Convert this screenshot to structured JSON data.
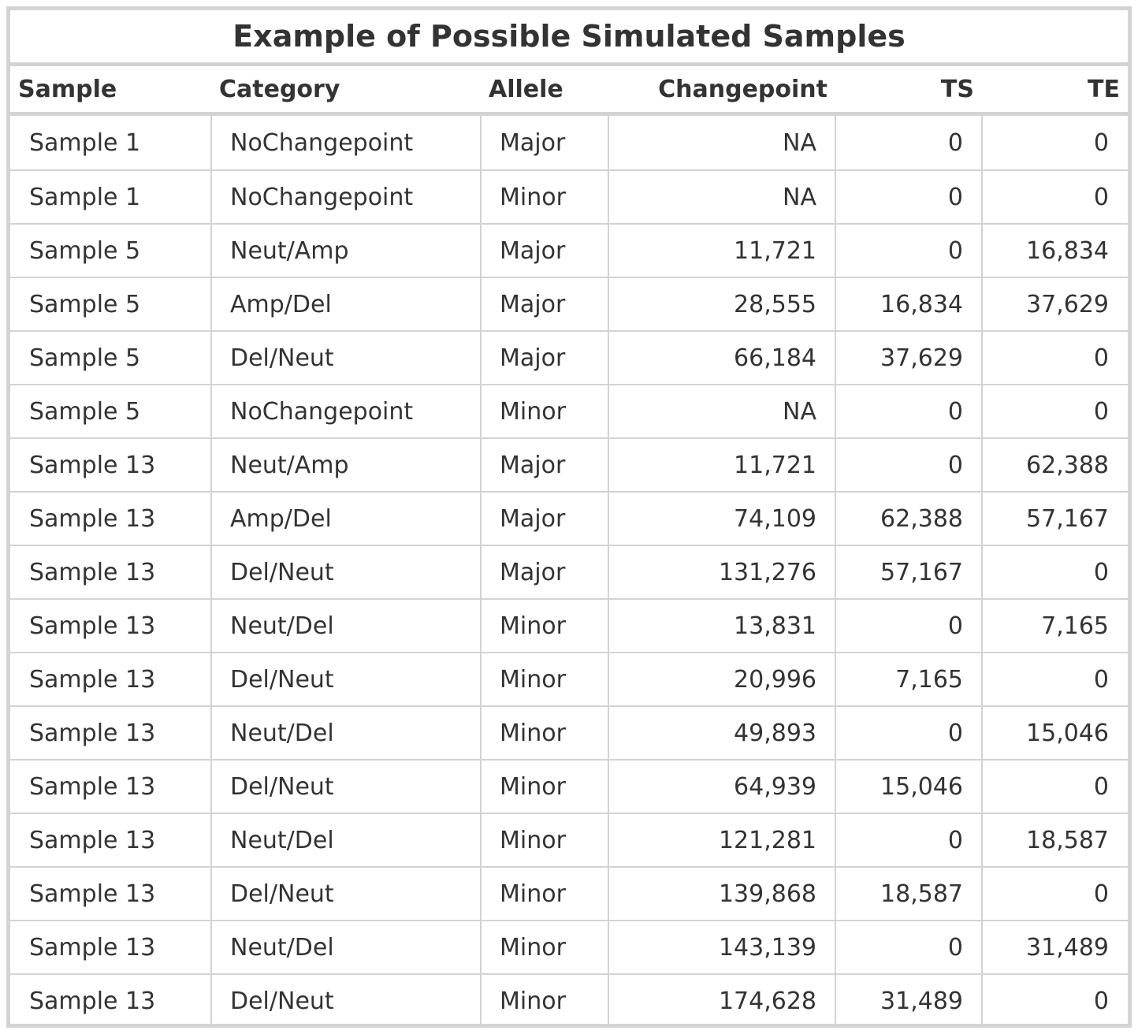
{
  "table": {
    "title": "Example of Possible Simulated Samples",
    "columns": [
      "Sample",
      "Category",
      "Allele",
      "Changepoint",
      "TS",
      "TE"
    ],
    "rows": [
      [
        "Sample 1",
        "NoChangepoint",
        "Major",
        "NA",
        "0",
        "0"
      ],
      [
        "Sample 1",
        "NoChangepoint",
        "Minor",
        "NA",
        "0",
        "0"
      ],
      [
        "Sample 5",
        "Neut/Amp",
        "Major",
        "11,721",
        "0",
        "16,834"
      ],
      [
        "Sample 5",
        "Amp/Del",
        "Major",
        "28,555",
        "16,834",
        "37,629"
      ],
      [
        "Sample 5",
        "Del/Neut",
        "Major",
        "66,184",
        "37,629",
        "0"
      ],
      [
        "Sample 5",
        "NoChangepoint",
        "Minor",
        "NA",
        "0",
        "0"
      ],
      [
        "Sample 13",
        "Neut/Amp",
        "Major",
        "11,721",
        "0",
        "62,388"
      ],
      [
        "Sample 13",
        "Amp/Del",
        "Major",
        "74,109",
        "62,388",
        "57,167"
      ],
      [
        "Sample 13",
        "Del/Neut",
        "Major",
        "131,276",
        "57,167",
        "0"
      ],
      [
        "Sample 13",
        "Neut/Del",
        "Minor",
        "13,831",
        "0",
        "7,165"
      ],
      [
        "Sample 13",
        "Del/Neut",
        "Minor",
        "20,996",
        "7,165",
        "0"
      ],
      [
        "Sample 13",
        "Neut/Del",
        "Minor",
        "49,893",
        "0",
        "15,046"
      ],
      [
        "Sample 13",
        "Del/Neut",
        "Minor",
        "64,939",
        "15,046",
        "0"
      ],
      [
        "Sample 13",
        "Neut/Del",
        "Minor",
        "121,281",
        "0",
        "18,587"
      ],
      [
        "Sample 13",
        "Del/Neut",
        "Minor",
        "139,868",
        "18,587",
        "0"
      ],
      [
        "Sample 13",
        "Neut/Del",
        "Minor",
        "143,139",
        "0",
        "31,489"
      ],
      [
        "Sample 13",
        "Del/Neut",
        "Minor",
        "174,628",
        "31,489",
        "0"
      ]
    ]
  },
  "chart_data": {
    "type": "table",
    "title": "Example of Possible Simulated Samples",
    "columns": [
      "Sample",
      "Category",
      "Allele",
      "Changepoint",
      "TS",
      "TE"
    ],
    "rows": [
      [
        "Sample 1",
        "NoChangepoint",
        "Major",
        "NA",
        "0",
        "0"
      ],
      [
        "Sample 1",
        "NoChangepoint",
        "Minor",
        "NA",
        "0",
        "0"
      ],
      [
        "Sample 5",
        "Neut/Amp",
        "Major",
        "11,721",
        "0",
        "16,834"
      ],
      [
        "Sample 5",
        "Amp/Del",
        "Major",
        "28,555",
        "16,834",
        "37,629"
      ],
      [
        "Sample 5",
        "Del/Neut",
        "Major",
        "66,184",
        "37,629",
        "0"
      ],
      [
        "Sample 5",
        "NoChangepoint",
        "Minor",
        "NA",
        "0",
        "0"
      ],
      [
        "Sample 13",
        "Neut/Amp",
        "Major",
        "11,721",
        "0",
        "62,388"
      ],
      [
        "Sample 13",
        "Amp/Del",
        "Major",
        "74,109",
        "62,388",
        "57,167"
      ],
      [
        "Sample 13",
        "Del/Neut",
        "Major",
        "131,276",
        "57,167",
        "0"
      ],
      [
        "Sample 13",
        "Neut/Del",
        "Minor",
        "13,831",
        "0",
        "7,165"
      ],
      [
        "Sample 13",
        "Del/Neut",
        "Minor",
        "20,996",
        "7,165",
        "0"
      ],
      [
        "Sample 13",
        "Neut/Del",
        "Minor",
        "49,893",
        "0",
        "15,046"
      ],
      [
        "Sample 13",
        "Del/Neut",
        "Minor",
        "64,939",
        "15,046",
        "0"
      ],
      [
        "Sample 13",
        "Neut/Del",
        "Minor",
        "121,281",
        "0",
        "18,587"
      ],
      [
        "Sample 13",
        "Del/Neut",
        "Minor",
        "139,868",
        "18,587",
        "0"
      ],
      [
        "Sample 13",
        "Neut/Del",
        "Minor",
        "143,139",
        "0",
        "31,489"
      ],
      [
        "Sample 13",
        "Del/Neut",
        "Minor",
        "174,628",
        "31,489",
        "0"
      ]
    ]
  }
}
